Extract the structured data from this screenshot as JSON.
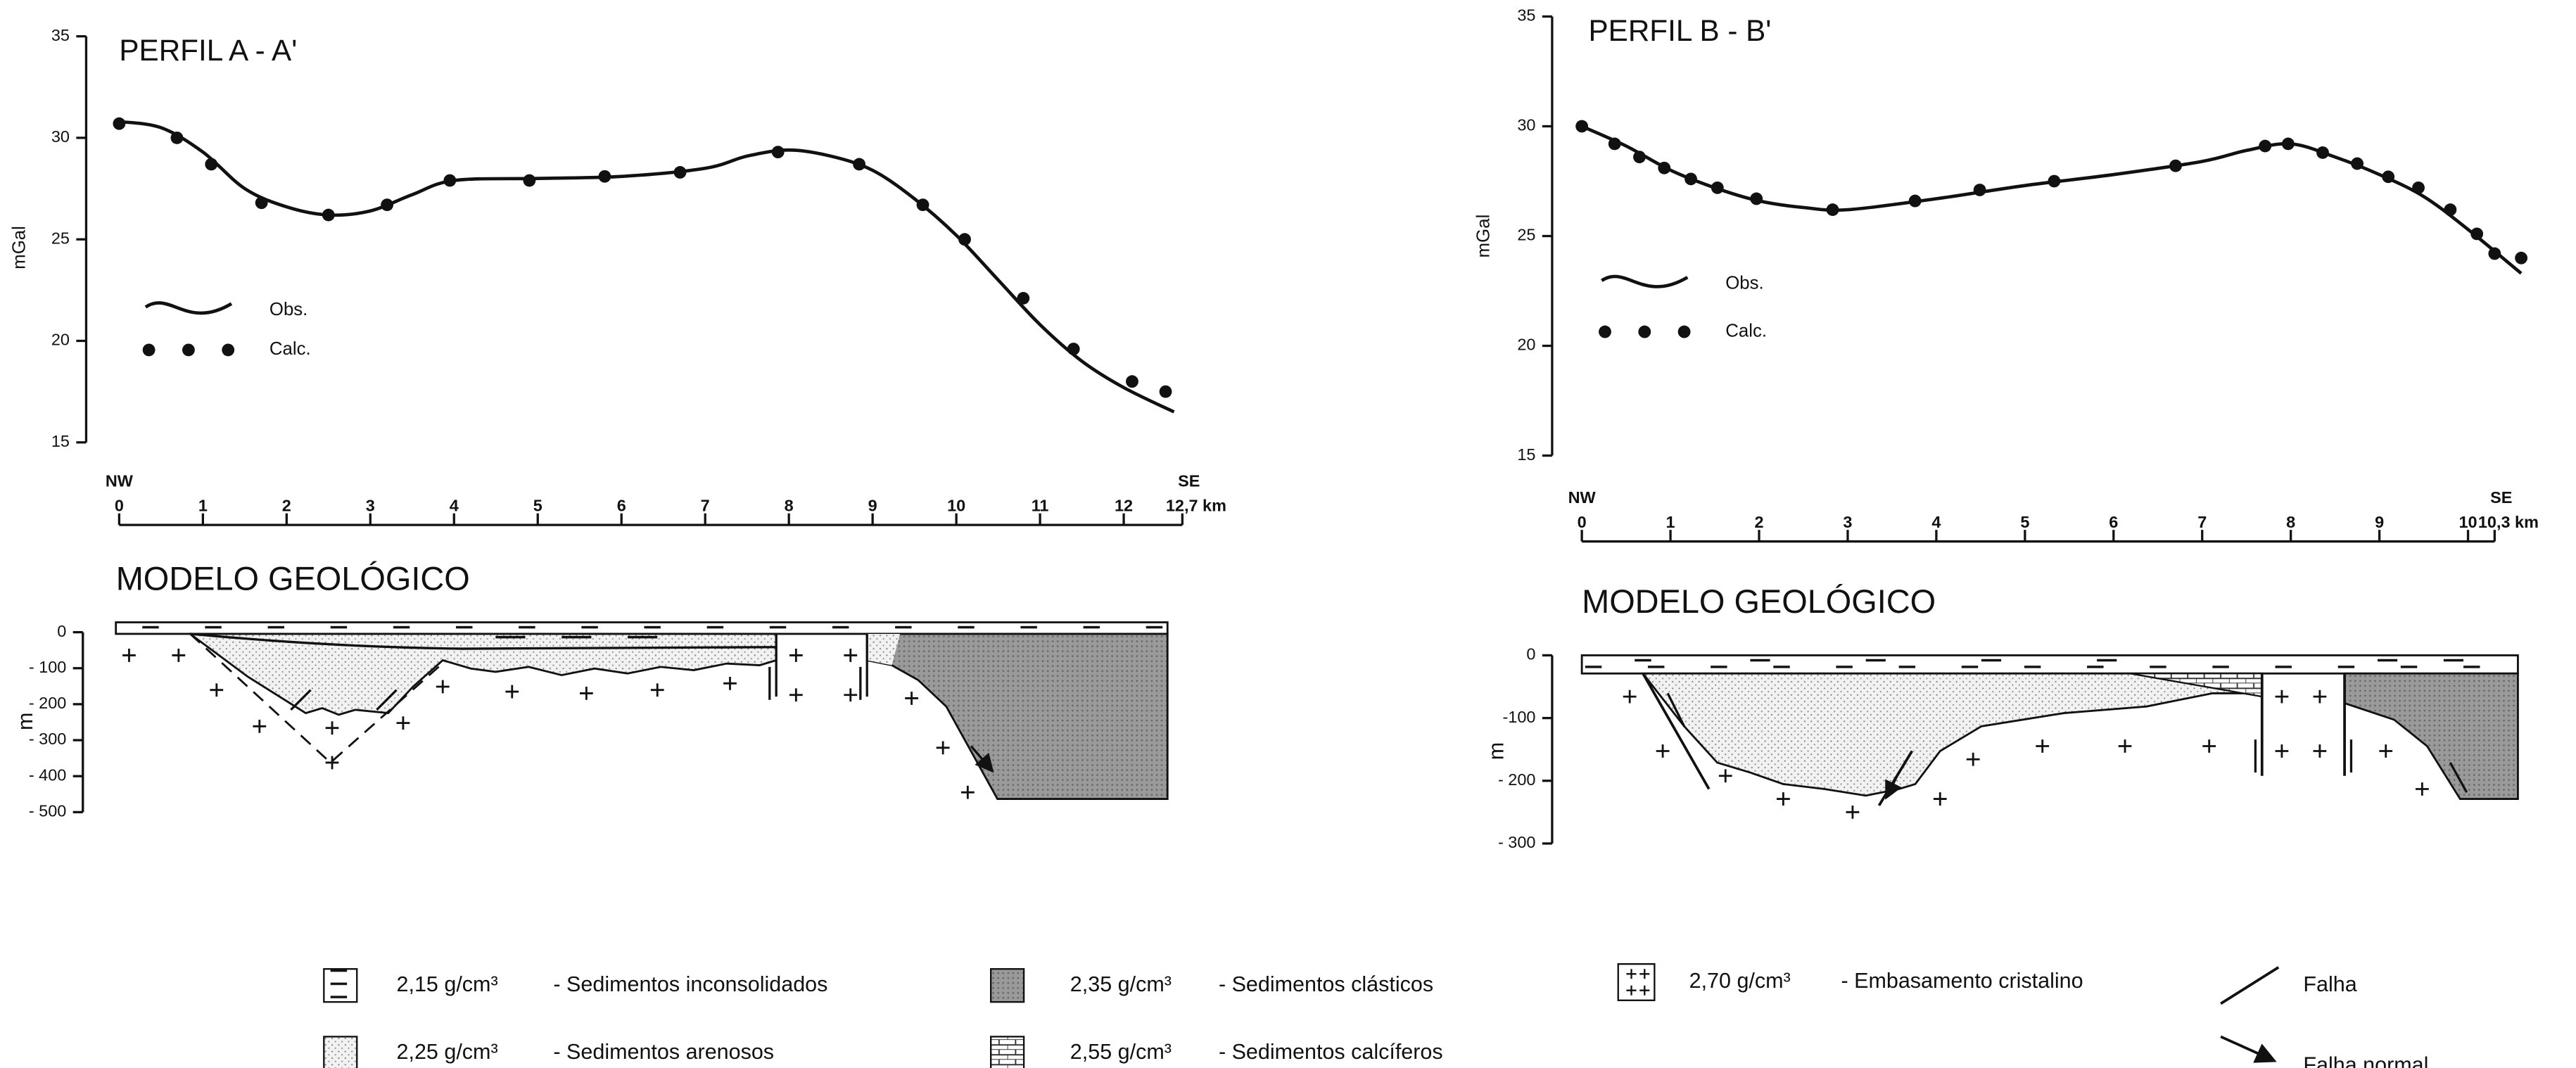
{
  "chart_data": [
    {
      "type": "line",
      "title": "PERFIL A - A'",
      "y_label": "mGal",
      "x_start_label": "NW",
      "x_end_label": "SE",
      "xlim": [
        0,
        12.7
      ],
      "xticks": [
        0,
        1,
        2,
        3,
        4,
        5,
        6,
        7,
        8,
        9,
        10,
        11,
        12,
        {
          "value": 12.7,
          "label": "12,7 km"
        }
      ],
      "ylim": [
        15,
        35
      ],
      "yticks": [
        15,
        20,
        25,
        30,
        35
      ],
      "series": [
        {
          "name": "Obs.",
          "style": "line",
          "color": "#111111",
          "x": [
            0,
            0.5,
            1,
            1.5,
            2,
            2.5,
            3,
            3.5,
            4,
            5,
            6,
            7,
            7.5,
            8,
            8.5,
            9,
            9.5,
            10,
            10.5,
            11,
            11.5,
            12,
            12.6
          ],
          "values": [
            30.8,
            30.5,
            29.3,
            27.5,
            26.6,
            26.2,
            26.4,
            27.2,
            27.9,
            28.0,
            28.1,
            28.5,
            29.1,
            29.4,
            29.1,
            28.4,
            27.0,
            25.2,
            23.0,
            20.8,
            19.0,
            17.7,
            16.5
          ]
        },
        {
          "name": "Calc.",
          "style": "points",
          "color": "#111111",
          "x": [
            0,
            0.69,
            1.1,
            1.7,
            2.5,
            3.2,
            3.95,
            4.9,
            5.8,
            6.7,
            7.87,
            8.84,
            9.6,
            10.1,
            10.8,
            11.4,
            12.1,
            12.5
          ],
          "values": [
            30.7,
            30.0,
            28.7,
            26.8,
            26.2,
            26.7,
            27.9,
            27.9,
            28.1,
            28.3,
            29.3,
            28.7,
            26.7,
            25.0,
            22.1,
            19.6,
            18.0,
            17.5
          ]
        }
      ]
    },
    {
      "type": "section",
      "title": "MODELO GEOLÓGICO",
      "y_label": "m",
      "ylim": [
        -500,
        0
      ],
      "yticks": [
        0,
        {
          "value": -100,
          "label": "- 100"
        },
        {
          "value": -200,
          "label": "- 200"
        },
        {
          "value": -300,
          "label": "- 300"
        },
        {
          "value": -400,
          "label": "- 400"
        },
        {
          "value": -500,
          "label": "- 500"
        }
      ]
    },
    {
      "type": "line",
      "title": "PERFIL B - B'",
      "y_label": "mGal",
      "x_start_label": "NW",
      "x_end_label": "SE",
      "xlim": [
        0,
        10.6
      ],
      "xticks": [
        0,
        1,
        2,
        3,
        4,
        5,
        6,
        7,
        8,
        9,
        10,
        {
          "value": 10.3,
          "label": "10,3 km"
        }
      ],
      "ylim": [
        15,
        35
      ],
      "yticks": [
        15,
        20,
        25,
        30,
        35
      ],
      "series": [
        {
          "name": "Obs.",
          "style": "line",
          "color": "#111111",
          "x": [
            0,
            0.5,
            1,
            1.5,
            2,
            2.5,
            3,
            4,
            5,
            6,
            7,
            7.5,
            8,
            8.5,
            9,
            9.5,
            10,
            10.6
          ],
          "values": [
            30.0,
            29.1,
            28.0,
            27.2,
            26.6,
            26.3,
            26.2,
            26.7,
            27.3,
            27.8,
            28.4,
            28.9,
            29.2,
            28.6,
            27.8,
            26.8,
            25.3,
            23.3
          ]
        },
        {
          "name": "Calc.",
          "style": "points",
          "color": "#111111",
          "x": [
            0,
            0.37,
            0.65,
            0.93,
            1.23,
            1.53,
            1.97,
            2.83,
            3.76,
            4.49,
            5.33,
            6.7,
            7.71,
            7.97,
            8.36,
            8.75,
            9.1,
            9.44,
            9.8,
            10.1,
            10.3,
            10.6
          ],
          "values": [
            30.0,
            29.2,
            28.6,
            28.1,
            27.6,
            27.2,
            26.7,
            26.2,
            26.6,
            27.1,
            27.5,
            28.2,
            29.1,
            29.2,
            28.8,
            28.3,
            27.7,
            27.2,
            26.2,
            25.1,
            24.2,
            24.0
          ]
        }
      ]
    },
    {
      "type": "section",
      "title": "MODELO GEOLÓGICO",
      "y_label": "m",
      "ylim": [
        -300,
        0
      ],
      "yticks": [
        0,
        {
          "value": -100,
          "label": "-100"
        },
        {
          "value": -200,
          "label": "- 200"
        },
        {
          "value": -300,
          "label": "- 300"
        }
      ]
    }
  ],
  "legend": {
    "items": [
      {
        "density": "2,15 g/cm³",
        "label": "- Sedimentos inconsolidados"
      },
      {
        "density": "2,25 g/cm³",
        "label": "- Sedimentos arenosos"
      },
      {
        "density": "2,35 g/cm³",
        "label": "- Sedimentos clásticos"
      },
      {
        "density": "2,55 g/cm³",
        "label": "- Sedimentos calcíferos"
      },
      {
        "density": "2,70 g/cm³",
        "label": "- Embasamento cristalino"
      },
      {
        "label": "Falha"
      },
      {
        "label": "Falha normal"
      }
    ]
  }
}
